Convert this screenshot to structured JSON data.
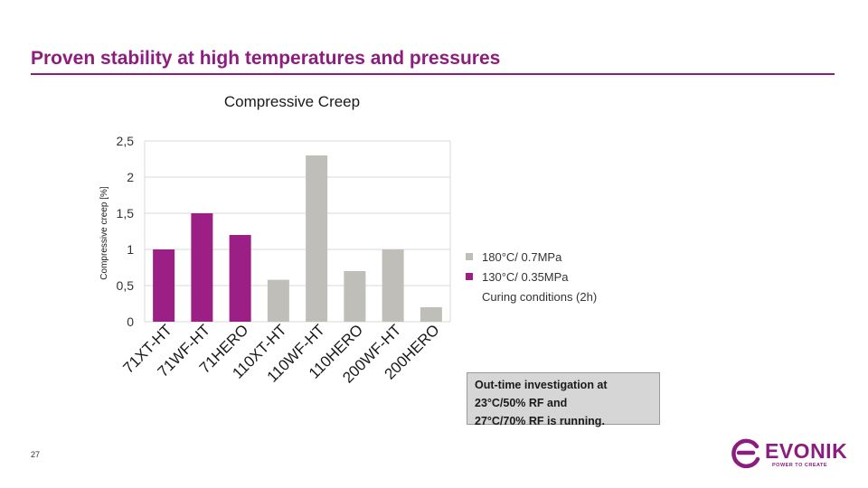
{
  "slide": {
    "title": "Proven stability at high temperatures and pressures",
    "page_number": "27"
  },
  "note": {
    "lines": [
      "Out-time investigation at",
      "23°C/50% RF and",
      "27°C/70% RF is running."
    ]
  },
  "logo": {
    "name": "EVONIK",
    "tagline": "POWER TO CREATE",
    "icon": "evonik-swirl-icon"
  },
  "colors": {
    "accent": "#8c1d7f",
    "series_purple": "#9b1f85",
    "series_gray": "#c0beb8",
    "grid": "#d9d9d9"
  },
  "chart_data": {
    "type": "bar",
    "title": "Compressive Creep",
    "ylabel": "Compressive creep [%]",
    "xlabel": "",
    "ylim": [
      0,
      2.5
    ],
    "yticks": [
      "0",
      "0,5",
      "1",
      "1,5",
      "2",
      "2,5"
    ],
    "ytick_values": [
      0,
      0.5,
      1,
      1.5,
      2,
      2.5
    ],
    "grid": true,
    "legend_position": "right",
    "categories": [
      "71XT-HT",
      "71WF-HT",
      "71HERO",
      "110XT-HT",
      "110WF-HT",
      "110HERO",
      "200WF-HT",
      "200HERO"
    ],
    "values": [
      1.0,
      1.5,
      1.2,
      0.58,
      2.3,
      0.7,
      1.0,
      0.2
    ],
    "bar_series": [
      1,
      1,
      1,
      0,
      0,
      0,
      0,
      0
    ],
    "series": [
      {
        "name": "180°C/ 0.7MPa",
        "color": "#c0beb8"
      },
      {
        "name": "130°C/ 0.35MPa",
        "color": "#9b1f85"
      }
    ],
    "legend_note": "Curing conditions (2h)"
  }
}
